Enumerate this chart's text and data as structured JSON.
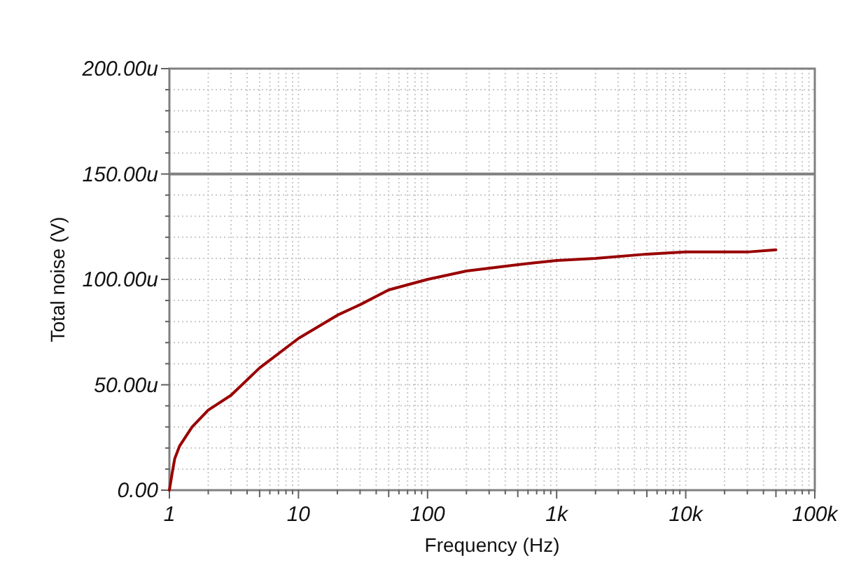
{
  "chart_data": {
    "type": "line",
    "xlabel": "Frequency (Hz)",
    "ylabel": "Total noise (V)",
    "log": "x",
    "grid": true,
    "marker": "none",
    "line_style": "solid",
    "xlim": [
      1,
      100000
    ],
    "ylim": [
      0,
      200
    ],
    "xticks": [
      1,
      10,
      100,
      {
        "value": 1000,
        "label": "1k"
      },
      {
        "value": 10000,
        "label": "10k"
      },
      {
        "value": 100000,
        "label": "100k"
      }
    ],
    "yticks": [
      {
        "value": 0,
        "label": "0.00"
      },
      {
        "value": 50,
        "label": "50.00u"
      },
      {
        "value": 100,
        "label": "100.00u"
      },
      {
        "value": 150,
        "label": "150.00u"
      },
      {
        "value": 200,
        "label": "200.00u"
      }
    ],
    "ref_lines": [
      {
        "axis": "y",
        "value": 150,
        "color": "#808080"
      }
    ],
    "x": [
      1,
      1.05,
      1.1,
      1.2,
      1.5,
      2,
      3,
      5,
      10,
      20,
      30,
      50,
      100,
      200,
      500,
      1000,
      2000,
      5000,
      10000,
      30000,
      50000
    ],
    "series": [
      {
        "color": "#990000",
        "values": [
          0,
          8,
          15,
          21,
          30,
          38,
          45,
          58,
          72,
          83,
          88,
          95,
          100,
          104,
          107,
          109,
          110,
          112,
          113,
          113,
          114
        ]
      }
    ]
  }
}
